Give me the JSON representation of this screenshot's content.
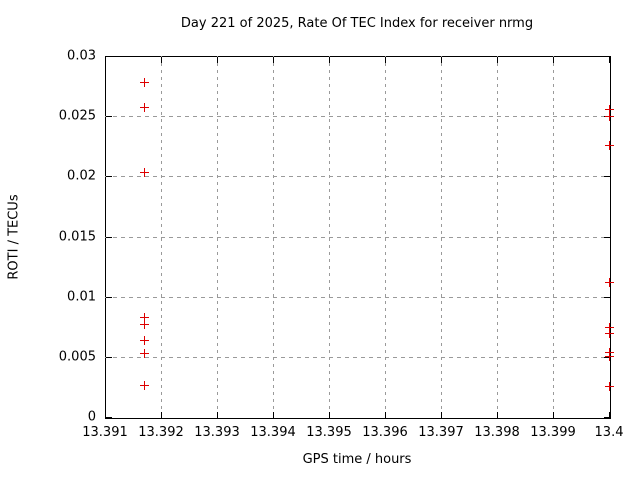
{
  "chart_data": {
    "type": "scatter",
    "title": "Day 221 of 2025, Rate Of TEC Index for receiver nrmg",
    "xlabel": "GPS time / hours",
    "ylabel": "ROTI / TECUs",
    "xlim": [
      13.391,
      13.4
    ],
    "ylim": [
      0,
      0.03
    ],
    "x_ticks": [
      13.391,
      13.392,
      13.393,
      13.394,
      13.395,
      13.396,
      13.397,
      13.398,
      13.399,
      13.4
    ],
    "x_tick_labels": [
      "13.391",
      "13.392",
      "13.393",
      "13.394",
      "13.395",
      "13.396",
      "13.397",
      "13.398",
      "13.399",
      "13.4"
    ],
    "y_ticks": [
      0,
      0.005,
      0.01,
      0.015,
      0.02,
      0.025,
      0.03
    ],
    "y_tick_labels": [
      "0",
      "0.005",
      "0.01",
      "0.015",
      "0.02",
      "0.025",
      "0.03"
    ],
    "grid": true,
    "legend": "none",
    "marker": "plus",
    "marker_color": "#dd0000",
    "frame_color": "#000000",
    "grid_color": "#9a9a9a",
    "series": [
      {
        "name": "ROTI",
        "points": [
          [
            13.3917,
            0.0278
          ],
          [
            13.3917,
            0.0258
          ],
          [
            13.3917,
            0.0204
          ],
          [
            13.3917,
            0.0083
          ],
          [
            13.3917,
            0.0077
          ],
          [
            13.3917,
            0.0064
          ],
          [
            13.3917,
            0.0053
          ],
          [
            13.3917,
            0.0027
          ],
          [
            13.4,
            0.0256
          ],
          [
            13.4,
            0.025
          ],
          [
            13.4,
            0.0226
          ],
          [
            13.4,
            0.0112
          ],
          [
            13.4,
            0.0075
          ],
          [
            13.4,
            0.007
          ],
          [
            13.4,
            0.0054
          ],
          [
            13.4,
            0.0051
          ],
          [
            13.4,
            0.0026
          ]
        ]
      }
    ]
  }
}
